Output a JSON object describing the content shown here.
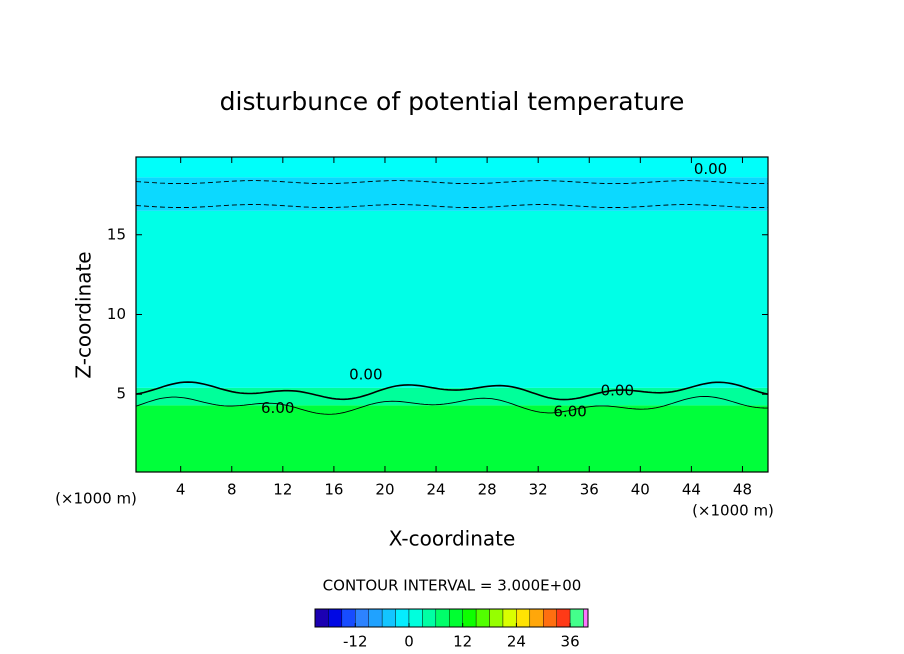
{
  "chart_data": {
    "type": "contour",
    "title": "disturbunce of potential temperature",
    "xlabel": "X-coordinate",
    "ylabel": "Z-coordinate",
    "x_unit": "(×1000 m)",
    "y_unit": "(×1000 m)",
    "xlim": [
      0.5,
      50
    ],
    "xticks": [
      4,
      8,
      12,
      16,
      20,
      24,
      28,
      32,
      36,
      40,
      44,
      48
    ],
    "ylim": [
      0.125,
      19.875
    ],
    "yticks": [
      5,
      10,
      15
    ],
    "field_bands": [
      {
        "z": [
          0.125,
          4.3
        ],
        "value": 10
      },
      {
        "z": [
          4.3,
          5.4
        ],
        "value": 5
      },
      {
        "z": [
          5.4,
          16.5
        ],
        "value": 1
      },
      {
        "z": [
          16.5,
          18.6
        ],
        "value": -3
      },
      {
        "z": [
          18.6,
          19.875
        ],
        "value": 0
      }
    ],
    "contours": [
      {
        "level": 0,
        "z": 5.2,
        "dashed": false
      },
      {
        "level": 6,
        "z": 4.3,
        "dashed": false
      },
      {
        "level": -3,
        "z": 18.3,
        "dashed": true
      },
      {
        "level": -3,
        "z": 16.8,
        "dashed": true
      }
    ],
    "contour_labels": [
      {
        "text": "0.00",
        "value": 0,
        "x": 18.5,
        "z": 6.2
      },
      {
        "text": "0.00",
        "value": 0,
        "x": 38.2,
        "z": 5.2
      },
      {
        "text": "0.00",
        "value": 0,
        "x": 45.5,
        "z": 19.1
      },
      {
        "text": "6.00",
        "value": 6,
        "x": 11.6,
        "z": 4.1
      },
      {
        "text": "6.00",
        "value": 6,
        "x": 34.5,
        "z": 3.9
      }
    ],
    "contour_interval_label": "CONTOUR INTERVAL = 3.000E+00",
    "contour_interval": 3,
    "clim": [
      -21,
      40
    ],
    "cticks": [
      -12,
      0,
      12,
      24,
      36
    ]
  }
}
